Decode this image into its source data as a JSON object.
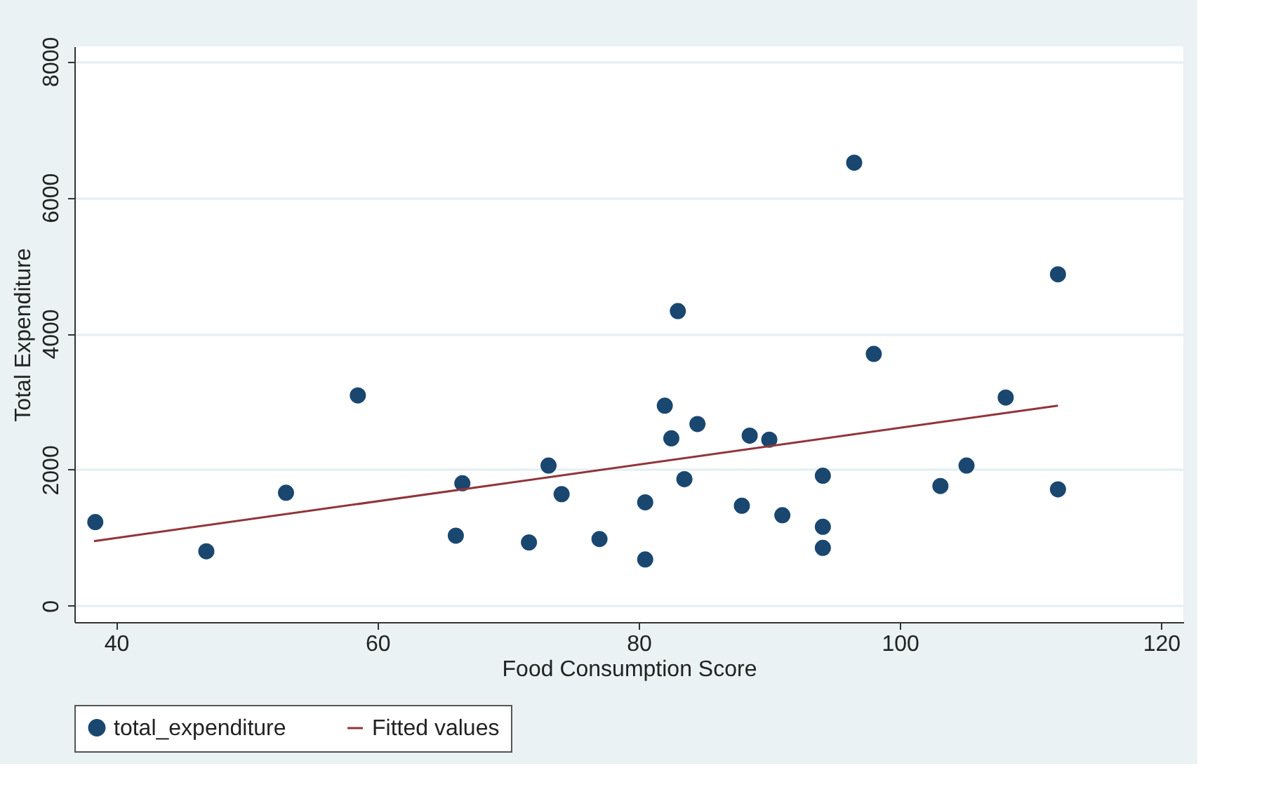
{
  "chart_data": {
    "type": "scatter",
    "xlabel": "Food Consumption Score",
    "ylabel": "Total Expenditure",
    "xlim": [
      36.8,
      121.7
    ],
    "ylim": [
      -240,
      8220
    ],
    "xticks": [
      40,
      60,
      80,
      100,
      120
    ],
    "yticks": [
      0,
      2000,
      4000,
      6000,
      8000
    ],
    "grid": "y",
    "legend": "bottom",
    "series": [
      {
        "name": "total_expenditure",
        "marker": "circle",
        "color": "#1a476f",
        "x": [
          38.4,
          46.9,
          53.0,
          58.5,
          66.0,
          66.5,
          71.6,
          73.1,
          74.1,
          77.0,
          80.5,
          80.5,
          82.0,
          82.5,
          83.0,
          83.5,
          84.5,
          87.9,
          88.5,
          90.0,
          91.0,
          94.1,
          94.1,
          94.1,
          96.5,
          98.0,
          103.1,
          105.1,
          108.1,
          112.1,
          112.1
        ],
        "values": [
          1230,
          800,
          1660,
          3090,
          1030,
          1800,
          930,
          2060,
          1640,
          980,
          1520,
          680,
          2940,
          2460,
          4330,
          1860,
          2670,
          1470,
          2500,
          2440,
          1330,
          1910,
          1160,
          850,
          6510,
          3700,
          1760,
          2060,
          3060,
          4870,
          1710
        ]
      },
      {
        "name": "Fitted values",
        "type": "line",
        "line_style": "solid",
        "color": "#90353b",
        "x": [
          38.3,
          112.1
        ],
        "values": [
          950,
          2940
        ]
      }
    ]
  }
}
